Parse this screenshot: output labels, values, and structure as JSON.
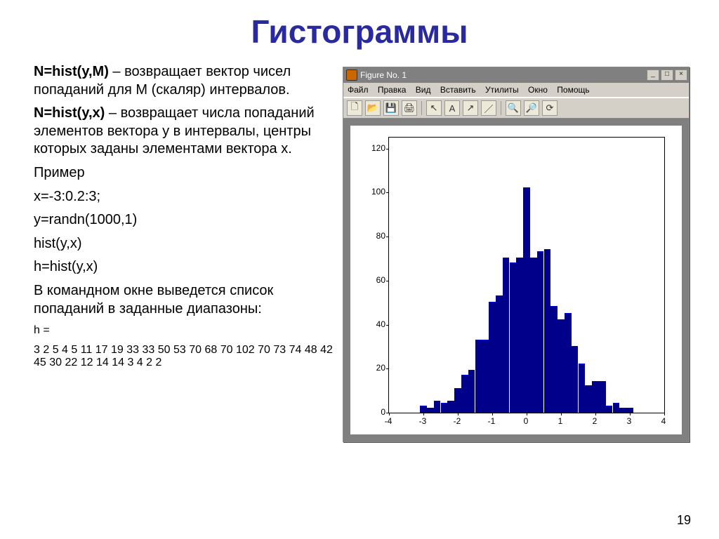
{
  "title": "Гистограммы",
  "left": {
    "line1_bold": "N=hist(y,M)",
    "line1_rest": " – возвращает вектор чисел попаданий для M (скаляр) интервалов.",
    "line2_bold": "N=hist(y,x)",
    "line2_rest": " – возвращает числа попаданий элементов вектора y в интервалы, центры которых заданы элементами вектора x.",
    "example_label": "Пример",
    "code1": "x=-3:0.2:3;",
    "code2": "y=randn(1000,1)",
    "code3": "hist(y,x)",
    "code4": "h=hist(y,x)",
    "result_text": "В командном окне выведется список попаданий в заданные диапазоны:",
    "h_label": "h =",
    "h_values": "3 2  5  4  5 11 17 19 33 33  50 53 70 68 70 102 70 73 74 48 42 45 30 22 12 14 14 3 4 2 2"
  },
  "pagenum": "19",
  "figwin": {
    "title": "Figure No. 1",
    "menus": [
      "Файл",
      "Правка",
      "Вид",
      "Вставить",
      "Утилиты",
      "Окно",
      "Помощь"
    ]
  },
  "chart": {
    "background_color": "#ffffff",
    "bar_color": "#00008b",
    "axis_color": "#000000",
    "xlim": [
      -4,
      4
    ],
    "ylim": [
      0,
      125
    ],
    "xticks": [
      -4,
      -3,
      -2,
      -1,
      0,
      1,
      2,
      3,
      4
    ],
    "yticks": [
      0,
      20,
      40,
      60,
      80,
      100,
      120
    ],
    "bin_step": 0.2,
    "bin_start": -3.0,
    "values": [
      3,
      2,
      5,
      4,
      5,
      11,
      17,
      19,
      33,
      33,
      50,
      53,
      70,
      68,
      70,
      102,
      70,
      73,
      74,
      48,
      42,
      45,
      30,
      22,
      12,
      14,
      14,
      3,
      4,
      2,
      2
    ],
    "axes_font_size": 12
  }
}
